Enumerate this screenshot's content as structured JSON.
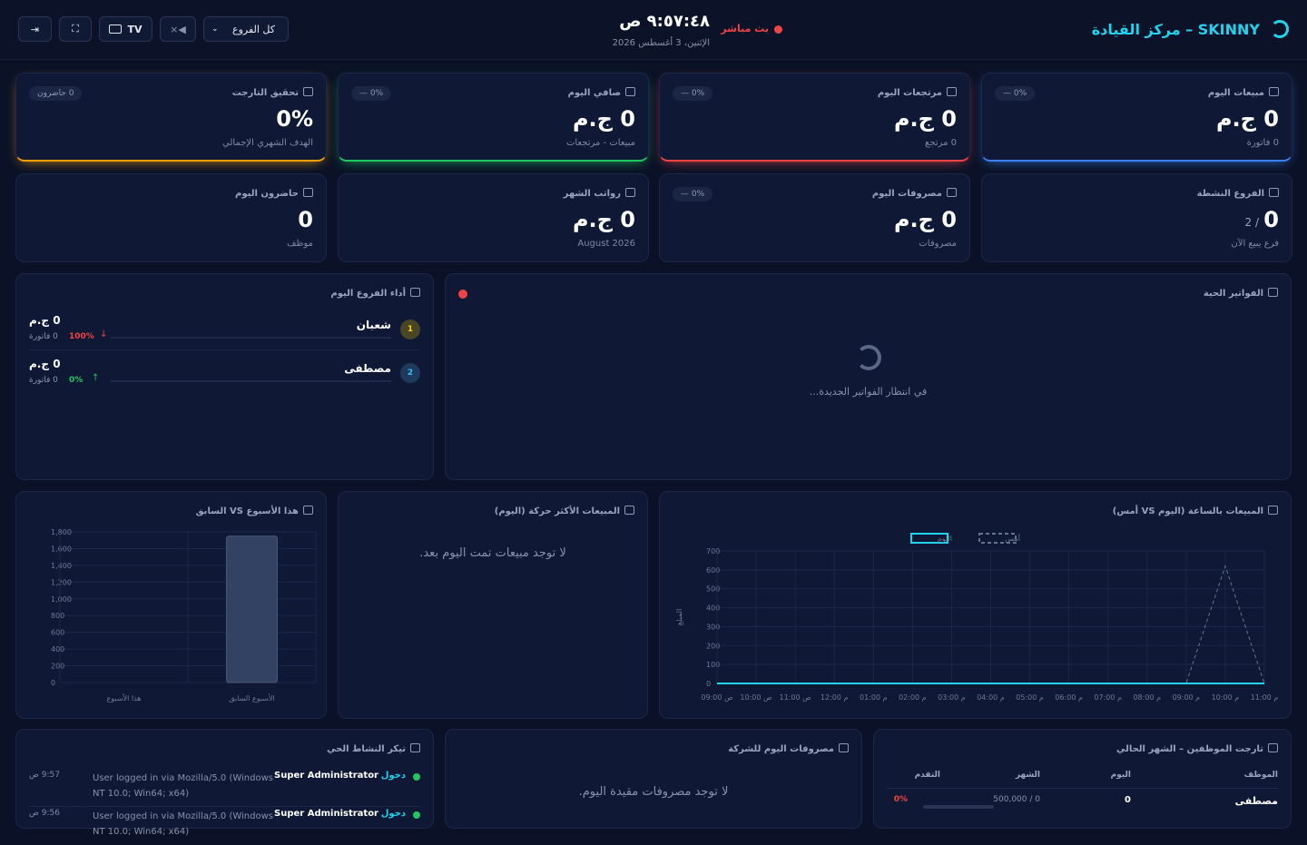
{
  "header": {
    "brand": "SKINNY – مركز القيادة",
    "live": "بث مباشر",
    "clock": "٩:٥٧:٤٨ ص",
    "date": "الإثنين، 3 أغسطس 2026",
    "branch_select": "كل الفروع",
    "tv": "TV"
  },
  "kpis": [
    {
      "title": "مبيعات اليوم",
      "value": "0 ج.م",
      "sub": "0 فاتورة",
      "badge": "0% —",
      "accent": "#3b82f6"
    },
    {
      "title": "مرتجعات اليوم",
      "value": "0 ج.م",
      "sub": "0 مرتجع",
      "badge": "0% —",
      "accent": "#ef4444"
    },
    {
      "title": "صافي اليوم",
      "value": "0 ج.م",
      "sub": "مبيعات - مرتجعات",
      "badge": "0% —",
      "accent": "#22c55e"
    },
    {
      "title": "تحقيق التارجت",
      "value": "0%",
      "sub": "الهدف الشهري الإجمالي",
      "badge": "0 حاضرون",
      "accent": "#f59e0b"
    },
    {
      "title": "الفروع النشطة",
      "value": "0",
      "extra": "/ 2",
      "sub": "فرع يبيع الآن"
    },
    {
      "title": "مصروفات اليوم",
      "value": "0 ج.م",
      "sub": "مصروفات",
      "badge": "0% —"
    },
    {
      "title": "رواتب الشهر",
      "value": "0 ج.م",
      "sub": "August 2026"
    },
    {
      "title": "حاضرون اليوم",
      "value": "0",
      "sub": "موظف"
    }
  ],
  "live_invoices": {
    "title": "الفواتير الحية",
    "empty": "في انتظار الفواتير الجديدة..."
  },
  "branches": {
    "title": "أداء الفروع اليوم",
    "rows": [
      {
        "rank": "1",
        "name": "شعبان",
        "amount": "0 ج.م",
        "invoices": "0 فاتورة",
        "change": "100%",
        "direction": "down"
      },
      {
        "rank": "2",
        "name": "مصطفى",
        "amount": "0 ج.م",
        "invoices": "0 فاتورة",
        "change": "0%",
        "direction": "up"
      }
    ]
  },
  "hourly_chart": {
    "type": "line",
    "title": "المبيعات بالساعة (اليوم VS أمس)",
    "ylabel": "المبلغ",
    "x": [
      "09:00 ص",
      "10:00 ص",
      "11:00 ص",
      "12:00 م",
      "01:00 م",
      "02:00 م",
      "03:00 م",
      "04:00 م",
      "05:00 م",
      "06:00 م",
      "07:00 م",
      "08:00 م",
      "09:00 م",
      "10:00 م",
      "11:00 م"
    ],
    "series": [
      {
        "name": "اليوم",
        "color": "#22d3ee",
        "values": [
          0,
          0,
          0,
          0,
          0,
          0,
          0,
          0,
          0,
          0,
          0,
          0,
          0,
          0,
          0
        ]
      },
      {
        "name": "أمس",
        "color": "#64748b",
        "values": [
          0,
          0,
          0,
          0,
          0,
          0,
          0,
          0,
          0,
          0,
          0,
          0,
          0,
          620,
          0
        ]
      }
    ],
    "ylim": [
      0,
      700
    ],
    "yticks": [
      0,
      100,
      200,
      300,
      400,
      500,
      600,
      700
    ],
    "grid": true
  },
  "top_products": {
    "title": "المبيعات الأكثر حركة (اليوم)",
    "empty": "لا توجد مبيعات تمت اليوم بعد."
  },
  "weekly_chart": {
    "type": "bar",
    "title": "هذا الأسبوع VS السابق",
    "categories": [
      "هذا الأسبوع",
      "الأسبوع السابق"
    ],
    "values": [
      0,
      1750
    ],
    "color": "#334163",
    "ylim": [
      0,
      1800
    ],
    "yticks": [
      0,
      200,
      400,
      600,
      800,
      {
        "value": 1000,
        "label": "1,000"
      },
      {
        "value": 1200,
        "label": "1,200"
      },
      {
        "value": 1400,
        "label": "1,400"
      },
      {
        "value": 1600,
        "label": "1,600"
      },
      {
        "value": 1800,
        "label": "1,800"
      }
    ],
    "grid": true
  },
  "activity": {
    "title": "تيكر النشاط الحي",
    "items": [
      {
        "user": "Super Administrator",
        "action": "دخول",
        "detail": "User logged in via Mozilla/5.0 (Windows NT 10.0; Win64; x64)",
        "time": "9:57 ص"
      },
      {
        "user": "Super Administrator",
        "action": "دخول",
        "detail": "User logged in via Mozilla/5.0 (Windows NT 10.0; Win64; x64)",
        "time": "9:56 ص"
      }
    ]
  },
  "expenses": {
    "title": "مصروفات اليوم للشركة",
    "empty": "لا توجد مصروفات مقيدة اليوم."
  },
  "targets": {
    "title": "تارجت الموظفين – الشهر الحالي",
    "columns": [
      "الموظف",
      "اليوم",
      "الشهر",
      "التقدم"
    ],
    "rows": [
      [
        "مصطفى",
        "0",
        "0 / 500,000",
        "0%"
      ]
    ]
  }
}
